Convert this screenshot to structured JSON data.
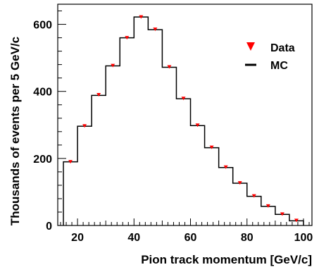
{
  "chart_data": {
    "type": "line",
    "title": "",
    "xlabel": "Pion track momentum [GeV/c]",
    "ylabel": "Thousands of events per 5 GeV/c",
    "xlim": [
      13,
      103
    ],
    "ylim": [
      0,
      660
    ],
    "x_ticks": [
      20,
      40,
      60,
      80,
      100
    ],
    "x_tick_labels": [
      "20",
      "40",
      "60",
      "80",
      "100"
    ],
    "y_ticks": [
      0,
      200,
      400,
      600
    ],
    "y_tick_labels": [
      "0",
      "200",
      "400",
      "600"
    ],
    "bin_edges": [
      15,
      20,
      25,
      30,
      35,
      40,
      45,
      50,
      55,
      60,
      65,
      70,
      75,
      80,
      85,
      90,
      95,
      100
    ],
    "x": [
      17.5,
      22.5,
      27.5,
      32.5,
      37.5,
      42.5,
      47.5,
      52.5,
      57.5,
      62.5,
      67.5,
      72.5,
      77.5,
      82.5,
      87.5,
      92.5,
      97.5
    ],
    "series": [
      {
        "name": "Data",
        "style": "markers",
        "marker": "down-triangle",
        "color": "#ff0000",
        "values": [
          190,
          297,
          390,
          477,
          560,
          622,
          585,
          473,
          379,
          299,
          233,
          174,
          127,
          88,
          58,
          34,
          15
        ]
      },
      {
        "name": "MC",
        "style": "histogram",
        "color": "#000000",
        "values": [
          190,
          296,
          388,
          476,
          560,
          622,
          584,
          472,
          378,
          298,
          232,
          173,
          126,
          87,
          57,
          33,
          14
        ]
      }
    ],
    "legend_position": "top-right",
    "grid": false
  }
}
